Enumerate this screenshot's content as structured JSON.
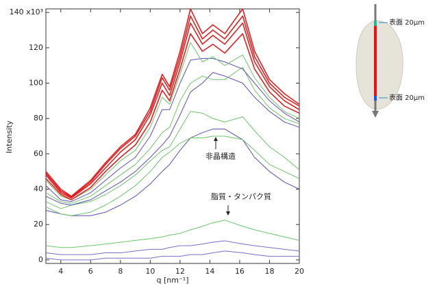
{
  "chart_data": {
    "type": "line",
    "x_label": "q [nm⁻¹]",
    "y_label": "Intensity",
    "annotations": [
      "非晶構造",
      "脂質・タンパク質"
    ],
    "x": [
      3,
      4,
      4.7,
      6,
      7,
      8,
      9,
      10,
      10.8,
      11.3,
      12,
      12.7,
      13.5,
      14.2,
      15,
      16.2,
      17,
      18,
      19,
      20
    ],
    "xlim": [
      3,
      20
    ],
    "xticks": [
      4,
      6,
      8,
      10,
      12,
      14,
      16,
      18,
      20
    ],
    "ylim": [
      -2,
      142
    ],
    "yticks": [
      0,
      20,
      40,
      60,
      80,
      100,
      120,
      {
        "value": 140,
        "label": "140 x10³"
      }
    ],
    "series": [
      {
        "color": "#7a6cc4",
        "values": [
          1,
          0,
          0,
          0,
          1,
          1,
          1,
          1,
          2,
          2,
          2,
          3,
          3,
          4,
          5,
          4,
          3,
          2,
          2,
          2
        ]
      },
      {
        "color": "#7a6cc4",
        "values": [
          4,
          3,
          3,
          3,
          4,
          4,
          5,
          6,
          6,
          7,
          8,
          8,
          9,
          10,
          10.8,
          9,
          8,
          7,
          6,
          5
        ]
      },
      {
        "color": "#6cc46c",
        "values": [
          8,
          7,
          7,
          8,
          9,
          10,
          11,
          12,
          13,
          14,
          15,
          17,
          19,
          21,
          22.5,
          19,
          17,
          15,
          13,
          11
        ]
      },
      {
        "color": "#5a4cb4",
        "values": [
          28,
          26,
          25,
          25,
          27,
          31,
          36,
          43,
          50,
          54,
          62,
          69,
          72,
          74,
          74,
          68,
          58,
          50,
          44,
          40
        ]
      },
      {
        "color": "#6cc46c",
        "values": [
          30,
          26,
          25,
          27,
          31,
          36,
          42,
          50,
          58,
          61,
          66,
          69,
          69,
          70,
          70,
          68,
          62,
          54,
          50,
          46
        ]
      },
      {
        "color": "#6cc46c",
        "values": [
          33,
          29,
          31,
          33,
          37,
          42,
          48,
          56,
          62,
          64,
          74,
          84,
          83,
          80,
          78,
          81,
          73,
          64,
          58,
          51
        ]
      },
      {
        "color": "#5a4cb4",
        "values": [
          36,
          32,
          31,
          34,
          39,
          44,
          50,
          58,
          65,
          70,
          82,
          95,
          100,
          106,
          104,
          100,
          92,
          84,
          78,
          75
        ]
      },
      {
        "color": "#6cc46c",
        "values": [
          38,
          33,
          32,
          36,
          42,
          48,
          54,
          63,
          72,
          75,
          90,
          100,
          104,
          102,
          102,
          109,
          96,
          86,
          80,
          77
        ]
      },
      {
        "color": "#5a4cb4",
        "values": [
          42,
          34,
          33,
          38,
          45,
          52,
          58,
          70,
          85,
          85,
          100,
          113,
          114,
          114,
          112,
          108,
          100,
          90,
          83,
          78
        ]
      },
      {
        "color": "#6cc46c",
        "values": [
          45,
          36,
          34,
          40,
          48,
          56,
          62,
          75,
          92,
          88,
          105,
          123,
          112,
          115,
          110,
          116,
          103,
          92,
          84,
          80
        ]
      },
      {
        "color": "#e02020",
        "values": [
          46,
          37,
          34,
          41,
          50,
          58,
          65,
          78,
          96,
          90,
          108,
          128,
          118,
          122,
          117,
          128,
          108,
          95,
          87,
          83
        ]
      },
      {
        "color": "#e02020",
        "values": [
          48,
          38,
          35,
          43,
          52,
          61,
          68,
          82,
          100,
          93,
          112,
          134,
          122,
          127,
          122,
          134,
          112,
          98,
          90,
          85
        ]
      },
      {
        "color": "#e02020",
        "values": [
          49,
          39,
          35.5,
          44,
          54,
          63,
          70,
          84,
          103,
          96,
          115,
          138,
          125,
          130,
          125,
          138,
          115,
          100,
          92,
          87
        ]
      },
      {
        "color": "#e02020",
        "values": [
          50,
          40,
          36,
          45,
          55,
          64,
          71,
          86,
          105,
          98,
          118,
          142,
          128,
          133,
          128,
          142,
          118,
          102,
          94,
          88
        ]
      }
    ]
  },
  "inset": {
    "labels": [
      "表面 20μm",
      "表面 20μm"
    ]
  }
}
